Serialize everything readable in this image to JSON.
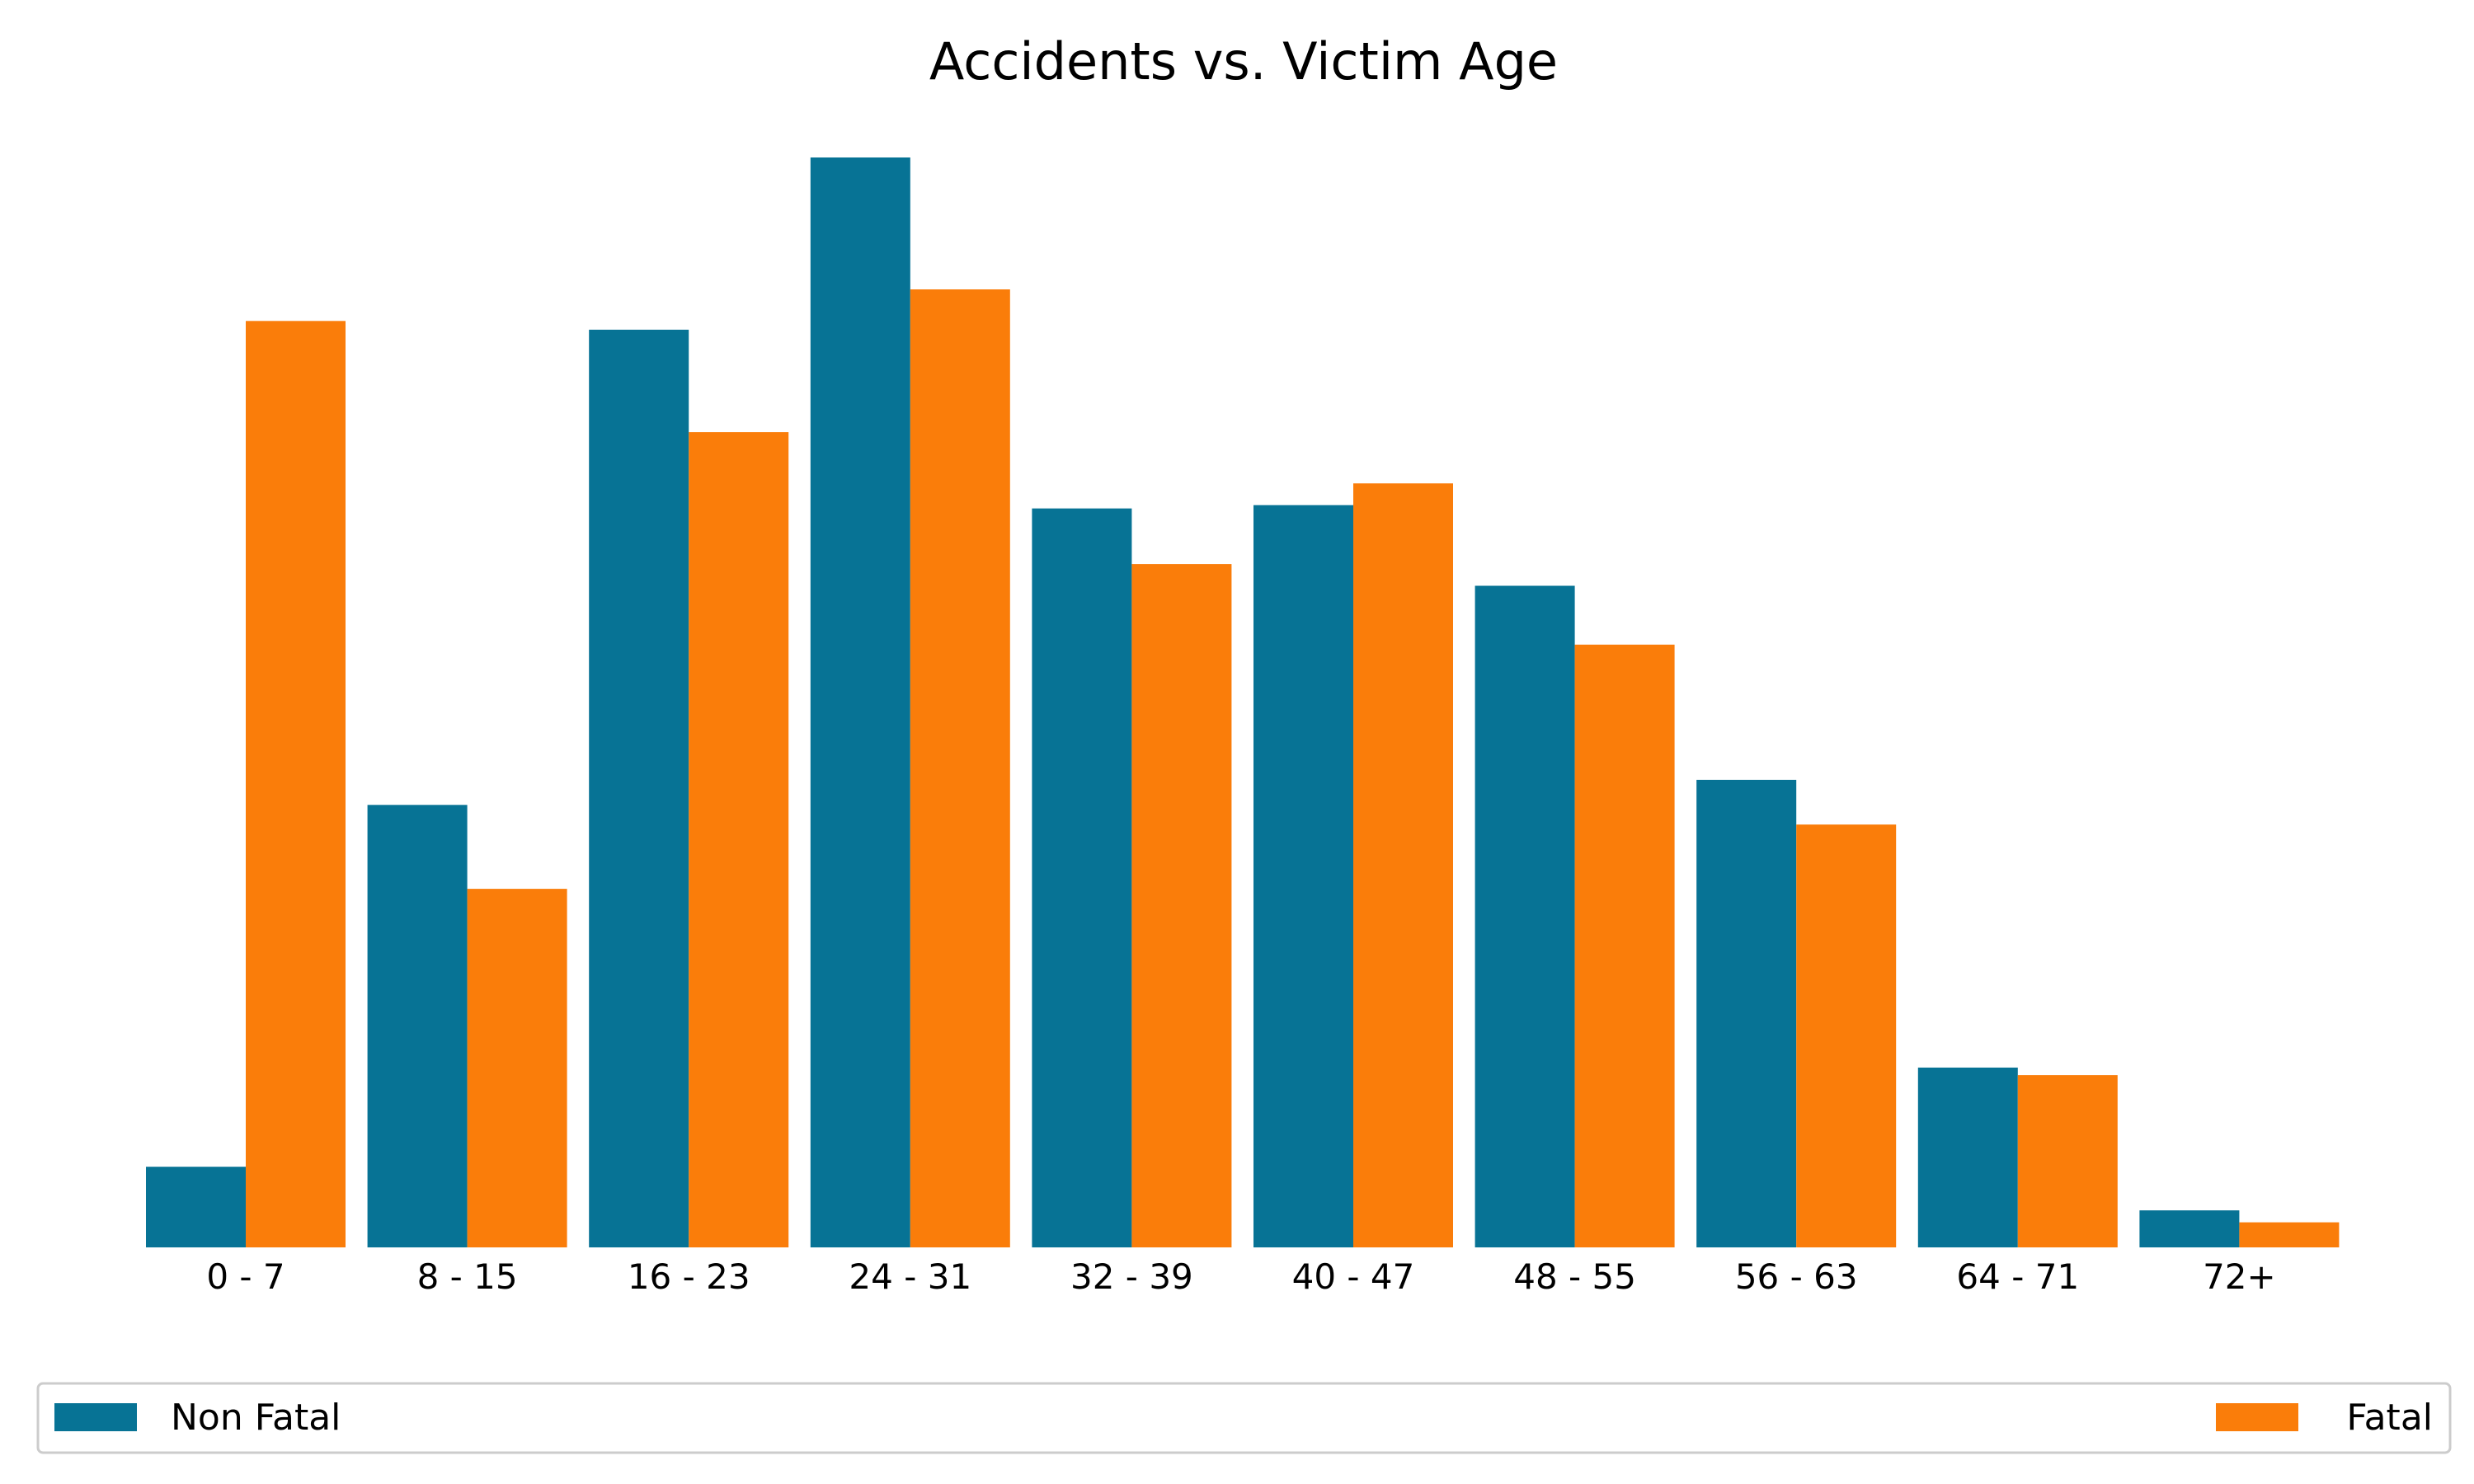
{
  "chart_data": {
    "type": "bar",
    "title": "Accidents vs. Victim Age",
    "xlabel": "",
    "ylabel": "",
    "categories": [
      "0 - 7",
      "8 - 15",
      "16 - 23",
      "24 - 31",
      "32 - 39",
      "40 - 47",
      "48 - 55",
      "56 - 63",
      "64 - 71",
      "72+"
    ],
    "series": [
      {
        "name": "Non Fatal",
        "color": "#077395",
        "values": [
          7.4,
          40.6,
          84.2,
          100.0,
          67.8,
          68.1,
          60.7,
          42.9,
          16.5,
          3.4
        ]
      },
      {
        "name": "Fatal",
        "color": "#FA7D0A",
        "values": [
          85.0,
          32.9,
          74.8,
          87.9,
          62.7,
          70.1,
          55.3,
          38.8,
          15.8,
          2.3
        ]
      }
    ],
    "ylim": [
      0,
      100
    ],
    "grid": false,
    "y_axis_visible": false,
    "legend_placement": "bottom"
  }
}
